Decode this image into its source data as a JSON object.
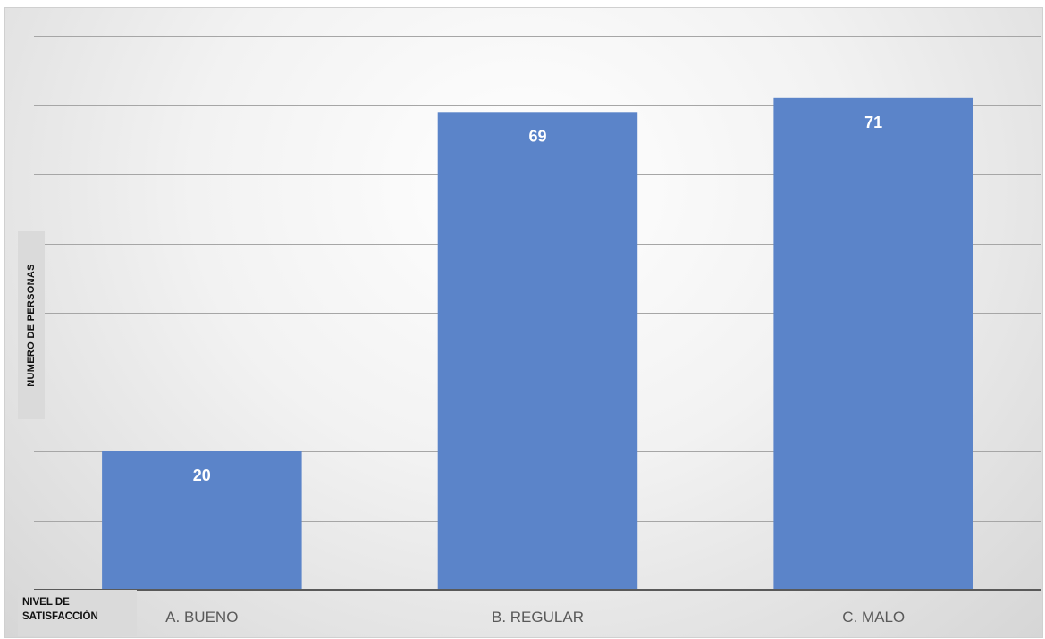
{
  "chart_data": {
    "type": "bar",
    "categories": [
      "A. BUENO",
      "B. REGULAR",
      "C. MALO"
    ],
    "values": [
      20,
      69,
      71
    ],
    "data_labels": [
      "20",
      "69",
      "71"
    ],
    "title": "",
    "xlabel_lines": [
      "NIVEL DE",
      "SATISFACCIÓN"
    ],
    "ylabel": "NUMERO DE PERSONAS",
    "ylim": [
      0,
      80
    ],
    "gridline_step": 10,
    "grid": true,
    "legend": "none",
    "bar_color": "#5b84c9",
    "label_color": "#ffffff",
    "tick_label_color": "#595959",
    "gridline_color": "#a6a6a6",
    "baseline_color": "#595959"
  }
}
